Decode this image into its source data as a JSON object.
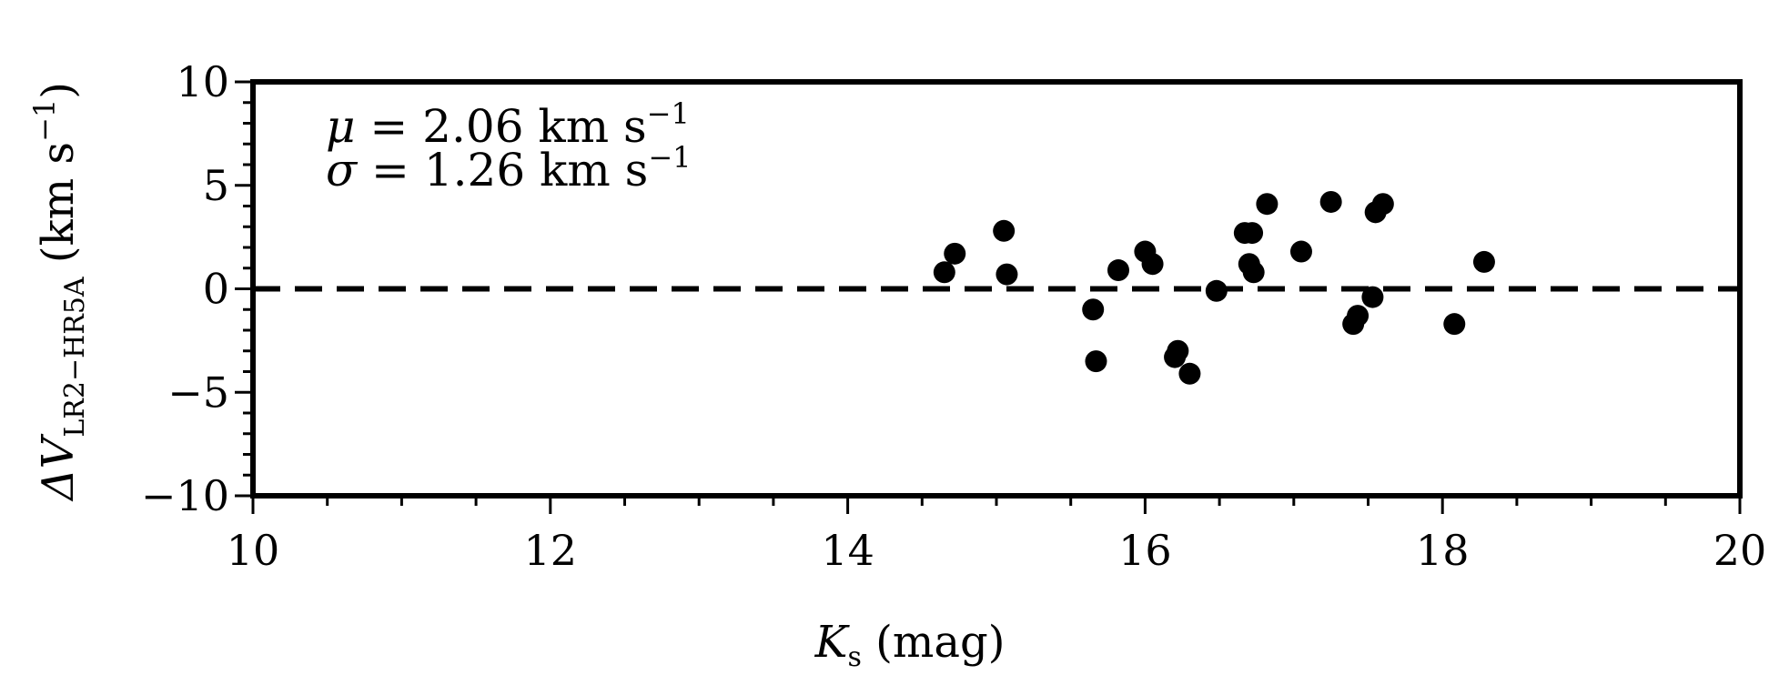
{
  "chart_data": {
    "type": "scatter",
    "xlabel": {
      "main": "K",
      "sub": "s",
      "rest": " (mag)"
    },
    "ylabel": {
      "main": "ΔV",
      "sub": "LR2−HR5A",
      "rest": " (km s",
      "sup": "−1",
      "close": ")"
    },
    "xlim": [
      10,
      20
    ],
    "ylim": [
      -10,
      10
    ],
    "x_ticks": [
      "10",
      "12",
      "14",
      "16",
      "18",
      "20"
    ],
    "y_ticks": [
      "10",
      "5",
      "0",
      "−5",
      "−10"
    ],
    "reference_line": {
      "y": 0,
      "style": "dashed"
    },
    "annotations": [
      {
        "sym": "μ",
        "text": " = 2.06 km s",
        "sup": "−1"
      },
      {
        "sym": "σ",
        "text": " = 1.26 km s",
        "sup": "−1"
      }
    ],
    "points": [
      {
        "x": 14.65,
        "y": 0.8
      },
      {
        "x": 14.72,
        "y": 1.7
      },
      {
        "x": 15.05,
        "y": 2.8
      },
      {
        "x": 15.07,
        "y": 0.7
      },
      {
        "x": 15.65,
        "y": -1.0
      },
      {
        "x": 15.67,
        "y": -3.5
      },
      {
        "x": 15.82,
        "y": 0.9
      },
      {
        "x": 16.0,
        "y": 1.8
      },
      {
        "x": 16.05,
        "y": 1.2
      },
      {
        "x": 16.2,
        "y": -3.3
      },
      {
        "x": 16.22,
        "y": -3.0
      },
      {
        "x": 16.3,
        "y": -4.1
      },
      {
        "x": 16.48,
        "y": -0.1
      },
      {
        "x": 16.67,
        "y": 2.7
      },
      {
        "x": 16.7,
        "y": 1.2
      },
      {
        "x": 16.72,
        "y": 2.7
      },
      {
        "x": 16.73,
        "y": 0.8
      },
      {
        "x": 16.82,
        "y": 4.1
      },
      {
        "x": 17.05,
        "y": 1.8
      },
      {
        "x": 17.25,
        "y": 4.2
      },
      {
        "x": 17.4,
        "y": -1.7
      },
      {
        "x": 17.43,
        "y": -1.3
      },
      {
        "x": 17.53,
        "y": -0.4
      },
      {
        "x": 17.55,
        "y": 3.7
      },
      {
        "x": 17.6,
        "y": 4.1
      },
      {
        "x": 18.08,
        "y": -1.7
      },
      {
        "x": 18.28,
        "y": 1.3
      }
    ],
    "grid": false,
    "legend": "none",
    "marker_color": "#000000"
  }
}
